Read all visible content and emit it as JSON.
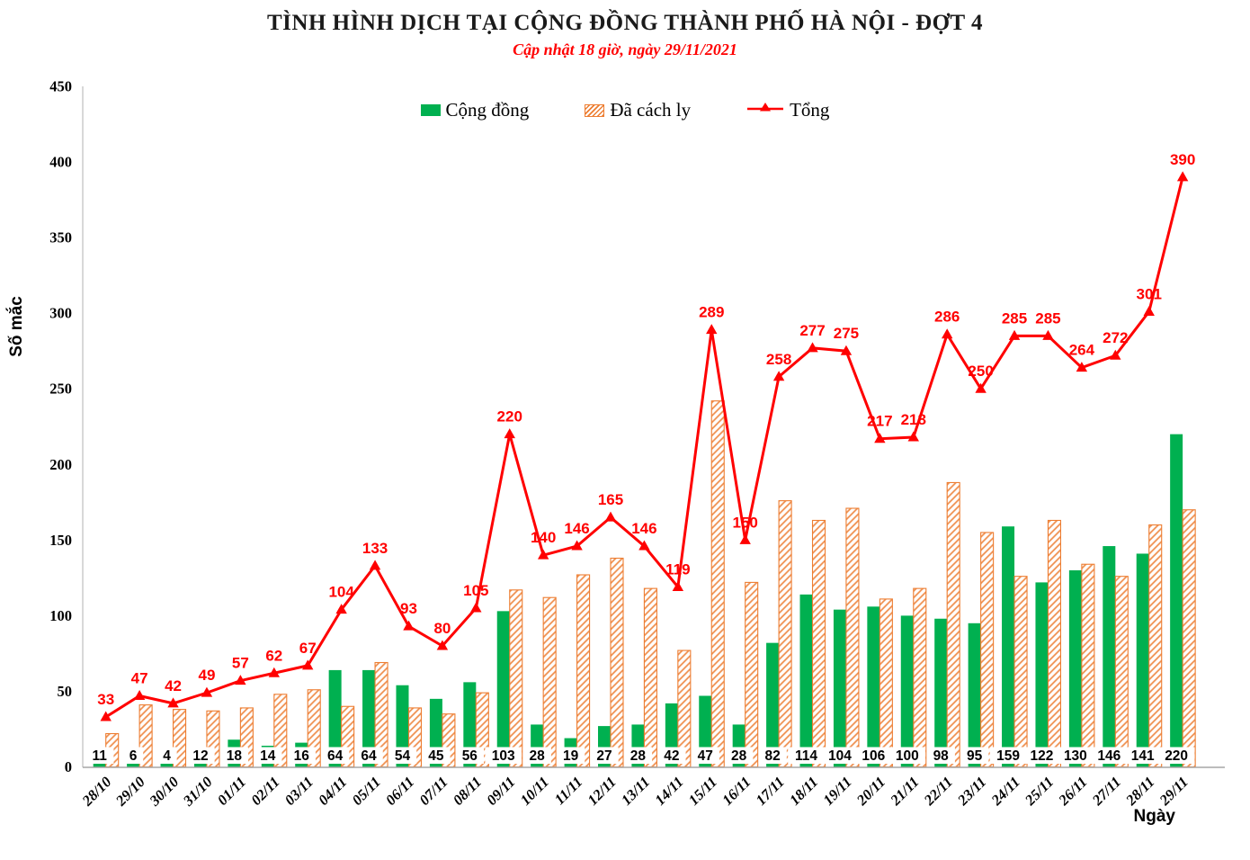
{
  "chart_data": {
    "type": "combo-bar-line",
    "title": "TÌNH HÌNH DỊCH TẠI CỘNG ĐỒNG THÀNH PHỐ HÀ NỘI - ĐỢT 4",
    "subtitle": "Cập nhật 18 giờ, ngày 29/11/2021",
    "xlabel": "Ngày",
    "ylabel": "Số mắc",
    "ylim": [
      0,
      450
    ],
    "ytick_step": 50,
    "grid": false,
    "legend_position": "top-center",
    "axis_line_color": "#BFBFBF",
    "categories": [
      "28/10",
      "29/10",
      "30/10",
      "31/10",
      "01/11",
      "02/11",
      "03/11",
      "04/11",
      "05/11",
      "06/11",
      "07/11",
      "08/11",
      "09/11",
      "10/11",
      "11/11",
      "12/11",
      "13/11",
      "14/11",
      "15/11",
      "16/11",
      "17/11",
      "18/11",
      "19/11",
      "20/11",
      "21/11",
      "22/11",
      "23/11",
      "24/11",
      "25/11",
      "26/11",
      "27/11",
      "28/11",
      "29/11"
    ],
    "series": [
      {
        "name": "Cộng đồng",
        "type": "bar",
        "color": "#00B050",
        "data_labels": "inside-base-white-box",
        "values": [
          11,
          6,
          4,
          12,
          18,
          14,
          16,
          64,
          64,
          54,
          45,
          56,
          103,
          28,
          19,
          27,
          28,
          42,
          47,
          28,
          82,
          114,
          104,
          106,
          100,
          98,
          95,
          159,
          122,
          130,
          146,
          141,
          220
        ]
      },
      {
        "name": "Đã cách ly",
        "type": "bar",
        "color": "#ED7D31",
        "style": "diagonal-hatch",
        "data_labels": "none",
        "values": [
          22,
          41,
          38,
          37,
          39,
          48,
          51,
          40,
          69,
          39,
          35,
          49,
          117,
          112,
          127,
          138,
          118,
          77,
          242,
          122,
          176,
          163,
          171,
          111,
          118,
          188,
          155,
          126,
          163,
          134,
          126,
          160,
          170
        ]
      },
      {
        "name": "Tổng",
        "type": "line",
        "color": "#FF0000",
        "marker": "triangle-up",
        "data_labels": "above",
        "values": [
          33,
          47,
          42,
          49,
          57,
          62,
          67,
          104,
          133,
          93,
          80,
          105,
          220,
          140,
          146,
          165,
          146,
          119,
          289,
          150,
          258,
          277,
          275,
          217,
          218,
          286,
          250,
          285,
          285,
          264,
          272,
          301,
          390
        ]
      }
    ]
  }
}
